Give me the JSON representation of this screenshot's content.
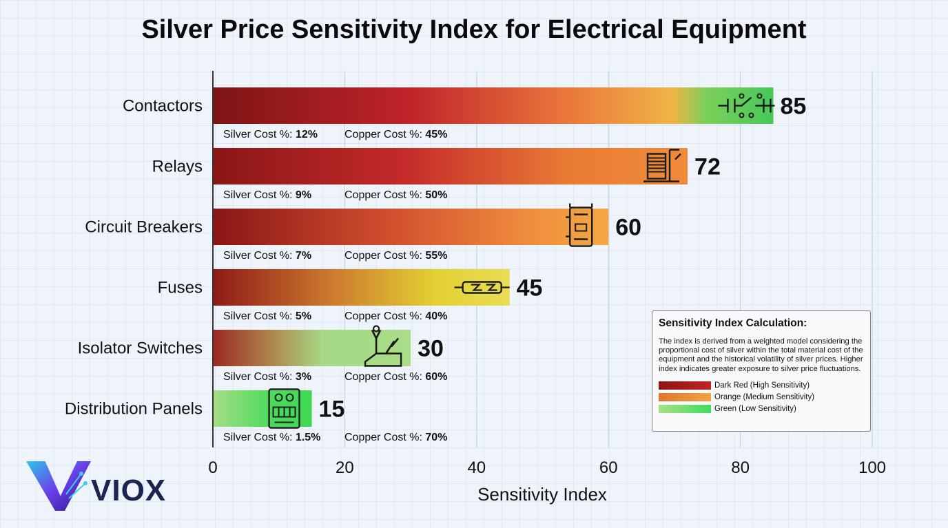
{
  "chart_data": {
    "type": "bar",
    "orientation": "horizontal",
    "title": "Silver Price Sensitivity Index for Electrical Equipment",
    "xlabel": "Sensitivity Index",
    "ylabel": "",
    "xlim": [
      0,
      100
    ],
    "ticks": [
      0,
      20,
      40,
      60,
      80,
      100
    ],
    "grid": true,
    "categories": [
      "Contactors",
      "Relays",
      "Circuit Breakers",
      "Fuses",
      "Isolator Switches",
      "Distribution Panels"
    ],
    "values": [
      85,
      72,
      60,
      45,
      30,
      15
    ],
    "silver_cost_label": "Silver Cost %:",
    "copper_cost_label": "Copper Cost %:",
    "silver_cost": [
      "12%",
      "9%",
      "7%",
      "5%",
      "3%",
      "1.5%"
    ],
    "copper_cost": [
      "45%",
      "50%",
      "55%",
      "40%",
      "60%",
      "70%"
    ],
    "icons": [
      "contactor-icon",
      "relay-icon",
      "circuit-breaker-icon",
      "fuse-icon",
      "isolator-switch-icon",
      "distribution-panel-icon"
    ]
  },
  "info_box": {
    "title": "Sensitivity Index Calculation:",
    "description": "The index is derived from a weighted model considering the proportional cost of silver within the total material cost of the equipment and the historical volatility of silver prices. Higher index indicates greater exposure to silver price fluctuations.",
    "legend": [
      {
        "label": "Dark Red (High Sensitivity)",
        "color_from": "#8f1414",
        "color_to": "#c22424"
      },
      {
        "label": "Orange (Medium Sensitivity)",
        "color_from": "#e0762c",
        "color_to": "#f3a542"
      },
      {
        "label": "Green (Low Sensitivity)",
        "color_from": "#a8df86",
        "color_to": "#3fdd5c"
      }
    ]
  },
  "colors": {
    "dark_red": "#7e1515",
    "red": "#c0232a",
    "orange": "#ee8c3a",
    "yellow": "#e2d238",
    "light_green": "#a9dd87",
    "green": "#40d655",
    "brand_navy": "#1c2552",
    "brand_violet": "#6a3ee8"
  },
  "brand": {
    "name": "VIOX"
  }
}
